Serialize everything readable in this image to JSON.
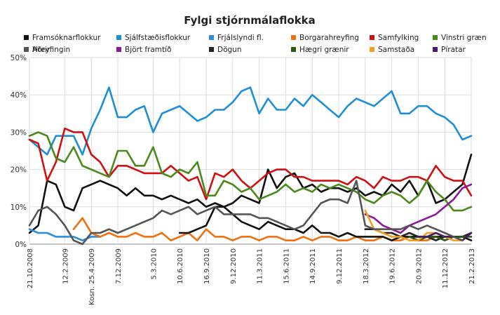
{
  "chart_data": {
    "type": "line",
    "title": "Fylgi stjórnmálaflokka",
    "xlabel": "",
    "ylabel": "",
    "ylim": [
      0,
      50
    ],
    "y_ticks": [
      "0%",
      "10%",
      "20%",
      "30%",
      "40%",
      "50%"
    ],
    "y_tick_values": [
      0,
      10,
      20,
      30,
      40,
      50
    ],
    "grid": true,
    "legend_position": "top",
    "x": [
      "21.10.2008",
      "",
      "",
      "",
      "12.2.2009",
      "",
      "",
      "25.4.2009",
      "",
      "",
      "7.12.2009",
      "",
      "",
      "",
      "5.3.2010",
      "",
      "",
      "10.6.2010",
      "",
      "",
      "16.9.2010",
      "",
      "",
      "9.12.2010",
      "",
      "",
      "11.3.2011",
      "",
      "",
      "15.6.2011",
      "",
      "",
      "14.9.2011",
      "",
      "",
      "9.12.2011",
      "",
      "",
      "18.3.2012",
      "",
      "",
      "19.6.2012",
      "",
      "",
      "20.9.2012",
      "",
      "",
      "11.12.2012",
      "",
      "",
      "21.2.2013"
    ],
    "x_tick_labels": [
      {
        "i": 0,
        "label": "21.10.2008"
      },
      {
        "i": 4,
        "label": "12.2.2009"
      },
      {
        "i": 7,
        "label": "Kosn. 25.4.2009"
      },
      {
        "i": 10,
        "label": "7.12.2009"
      },
      {
        "i": 14,
        "label": "5.3.2010"
      },
      {
        "i": 17,
        "label": "10.6.2010"
      },
      {
        "i": 20,
        "label": "16.9.2010"
      },
      {
        "i": 23,
        "label": "9.12.2010"
      },
      {
        "i": 26,
        "label": "11.3.2011"
      },
      {
        "i": 29,
        "label": "15.6.2011"
      },
      {
        "i": 32,
        "label": "14.9.2011"
      },
      {
        "i": 35,
        "label": "9.12.2011"
      },
      {
        "i": 38,
        "label": "18.3.2012"
      },
      {
        "i": 41,
        "label": "19.6.2012"
      },
      {
        "i": 44,
        "label": "20.9.2012"
      },
      {
        "i": 47,
        "label": "11.12.2012"
      },
      {
        "i": 50,
        "label": "21.2.2013"
      }
    ],
    "n_points": 51,
    "series": [
      {
        "name": "Framsóknarflokkur",
        "color": "#111111",
        "start": 0,
        "values": [
          3,
          5,
          17,
          16,
          10,
          9,
          15,
          16,
          17,
          16,
          15,
          13,
          15,
          13,
          13,
          12,
          13,
          12,
          11,
          12,
          10,
          11,
          10,
          11,
          13,
          12,
          11,
          20,
          15,
          18,
          19,
          15,
          16,
          14,
          15,
          15,
          14,
          15,
          13,
          14,
          13,
          16,
          14,
          17,
          13,
          17,
          11,
          12,
          14,
          16,
          24
        ]
      },
      {
        "name": "Sjálfstæðisflokkur",
        "color": "#1e8fd6",
        "start": 0,
        "values": [
          28,
          26,
          24,
          29,
          29,
          29,
          24,
          31,
          36,
          42,
          34,
          34,
          36,
          37,
          30,
          35,
          36,
          37,
          35,
          33,
          34,
          36,
          36,
          38,
          41,
          42,
          35,
          39,
          36,
          36,
          39,
          37,
          40,
          38,
          36,
          34,
          37,
          39,
          38,
          37,
          39,
          41,
          35,
          35,
          37,
          37,
          35,
          34,
          32,
          28,
          29
        ]
      },
      {
        "name": "Frjálslyndi fl.",
        "color": "#2a8ee0",
        "start": 0,
        "values": [
          4,
          3,
          3,
          2,
          2,
          2,
          1,
          2,
          2,
          null,
          null,
          null,
          null,
          null,
          null,
          null,
          null,
          null,
          null,
          null,
          null,
          null,
          null,
          null,
          null,
          null,
          null,
          null,
          null,
          null,
          null,
          null,
          null,
          null,
          null,
          null,
          null,
          null,
          null,
          null,
          null,
          null,
          null,
          null,
          null,
          null,
          null,
          null,
          null,
          null,
          null
        ]
      },
      {
        "name": "Borgarahreyfing",
        "color": "#f07010",
        "start": 0,
        "values": [
          null,
          null,
          null,
          null,
          null,
          4,
          7,
          3,
          2,
          3,
          2,
          2,
          3,
          2,
          2,
          3,
          1,
          2,
          3,
          1,
          4,
          2,
          2,
          1,
          2,
          2,
          1,
          2,
          2,
          1,
          1,
          2,
          1,
          2,
          2,
          1,
          1,
          2,
          1,
          1,
          2,
          1,
          1,
          2,
          1,
          1,
          2,
          null,
          null,
          null,
          null
        ]
      },
      {
        "name": "Samfylking",
        "color": "#d01010",
        "start": 0,
        "values": [
          28,
          27,
          17,
          22,
          31,
          30,
          30,
          24,
          22,
          18,
          21,
          21,
          20,
          19,
          19,
          19,
          21,
          19,
          17,
          18,
          12,
          19,
          18,
          20,
          17,
          15,
          17,
          19,
          20,
          20,
          18,
          18,
          17,
          17,
          17,
          17,
          16,
          18,
          17,
          15,
          18,
          17,
          17,
          18,
          18,
          17,
          21,
          18,
          17,
          17,
          13
        ]
      },
      {
        "name": "Vinstri græn",
        "color": "#4a8a1a",
        "start": 0,
        "values": [
          29,
          30,
          29,
          23,
          22,
          26,
          21,
          20,
          19,
          18,
          25,
          25,
          21,
          21,
          26,
          19,
          18,
          20,
          19,
          22,
          13,
          13,
          17,
          16,
          14,
          15,
          12,
          13,
          14,
          16,
          14,
          15,
          14,
          16,
          15,
          16,
          15,
          14,
          12,
          11,
          13,
          14,
          13,
          11,
          13,
          17,
          14,
          12,
          9,
          9,
          10
        ]
      },
      {
        "name": "Hreyfingin",
        "color": "#111111",
        "start": 0,
        "values": [
          null,
          null,
          null,
          null,
          null,
          null,
          null,
          null,
          null,
          null,
          null,
          null,
          null,
          null,
          null,
          null,
          null,
          3,
          3,
          4,
          5,
          10,
          10,
          8,
          6,
          5,
          4,
          6,
          5,
          4,
          4,
          3,
          5,
          3,
          3,
          2,
          3,
          2,
          2,
          2,
          2,
          1,
          2,
          2,
          2,
          2,
          2,
          2,
          2,
          2,
          1
        ]
      },
      {
        "name": "Björt framtíð",
        "color": "#8a1a9a",
        "start": 0,
        "values": [
          null,
          null,
          null,
          null,
          null,
          null,
          null,
          null,
          null,
          null,
          null,
          null,
          null,
          null,
          null,
          null,
          null,
          null,
          null,
          null,
          null,
          null,
          null,
          null,
          null,
          null,
          null,
          null,
          null,
          null,
          null,
          null,
          null,
          null,
          null,
          null,
          null,
          null,
          8,
          7,
          5,
          4,
          3,
          5,
          6,
          7,
          8,
          10,
          12,
          15,
          16
        ]
      },
      {
        "name": "Dögun",
        "color": "#222222",
        "start": 0,
        "values": [
          null,
          null,
          null,
          null,
          null,
          null,
          null,
          null,
          null,
          null,
          null,
          null,
          null,
          null,
          null,
          null,
          null,
          null,
          null,
          null,
          null,
          null,
          null,
          null,
          null,
          null,
          null,
          null,
          null,
          null,
          null,
          null,
          null,
          null,
          null,
          null,
          null,
          null,
          4,
          4,
          3,
          3,
          2,
          3,
          2,
          2,
          1,
          2,
          2,
          2,
          3
        ]
      },
      {
        "name": "Hægri grænir",
        "color": "#2a5a10",
        "start": 0,
        "values": [
          null,
          null,
          null,
          null,
          null,
          null,
          null,
          null,
          null,
          null,
          null,
          null,
          null,
          null,
          null,
          null,
          null,
          null,
          null,
          null,
          null,
          null,
          null,
          null,
          null,
          null,
          null,
          null,
          null,
          null,
          null,
          null,
          null,
          null,
          null,
          null,
          null,
          null,
          null,
          null,
          null,
          null,
          null,
          2,
          1,
          2,
          2,
          1,
          2,
          2,
          2
        ]
      },
      {
        "name": "Samstaða",
        "color": "#f0a020",
        "start": 0,
        "values": [
          null,
          null,
          null,
          null,
          null,
          null,
          null,
          null,
          null,
          null,
          null,
          null,
          null,
          null,
          null,
          null,
          null,
          null,
          null,
          null,
          null,
          null,
          null,
          null,
          null,
          null,
          null,
          null,
          null,
          null,
          null,
          null,
          null,
          null,
          null,
          null,
          null,
          null,
          9,
          4,
          3,
          2,
          2,
          1,
          1,
          3,
          3,
          2,
          1,
          1,
          null
        ]
      },
      {
        "name": "Píratar",
        "color": "#4a1a6a",
        "start": 0,
        "values": [
          null,
          null,
          null,
          null,
          null,
          null,
          null,
          null,
          null,
          null,
          null,
          null,
          null,
          null,
          null,
          null,
          null,
          null,
          null,
          null,
          null,
          null,
          null,
          null,
          null,
          null,
          null,
          null,
          null,
          null,
          null,
          null,
          null,
          null,
          null,
          null,
          null,
          null,
          null,
          null,
          null,
          null,
          null,
          null,
          2,
          2,
          3,
          2,
          2,
          1,
          3
        ]
      },
      {
        "name": "Aðrir",
        "color": "#555555",
        "start": 0,
        "values": [
          5,
          9,
          10,
          8,
          5,
          1,
          0,
          3,
          3,
          4,
          3,
          4,
          5,
          6,
          7,
          9,
          8,
          9,
          10,
          8,
          9,
          10,
          8,
          8,
          8,
          8,
          7,
          7,
          6,
          5,
          4,
          5,
          8,
          11,
          12,
          12,
          11,
          17,
          5,
          4,
          4,
          4,
          4,
          5,
          4,
          5,
          4,
          3,
          2,
          1,
          null
        ]
      }
    ]
  }
}
